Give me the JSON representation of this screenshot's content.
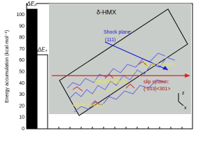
{
  "chart_data": {
    "type": "bar",
    "y_label": "Energy accumulation (kcal·mol⁻¹)",
    "categories": [
      "ΔEₚ",
      "ΔEₛ"
    ],
    "values": [
      105,
      65
    ],
    "colors": [
      "#000000",
      "#ffffff"
    ],
    "ylim": [
      0,
      110
    ],
    "yticks": [
      0,
      10,
      20,
      30,
      40,
      50,
      60,
      70,
      80,
      90,
      100
    ]
  },
  "inset": {
    "title": "δ-HMX",
    "shock_label": "Shock plane:",
    "shock_plane": "(111)",
    "contacts": [
      "Close contacts",
      "Close contacts",
      "Close contacts"
    ],
    "slip_label": "slip system:",
    "slip_system": "{-103}<301>",
    "axes": [
      "z",
      "x"
    ]
  }
}
